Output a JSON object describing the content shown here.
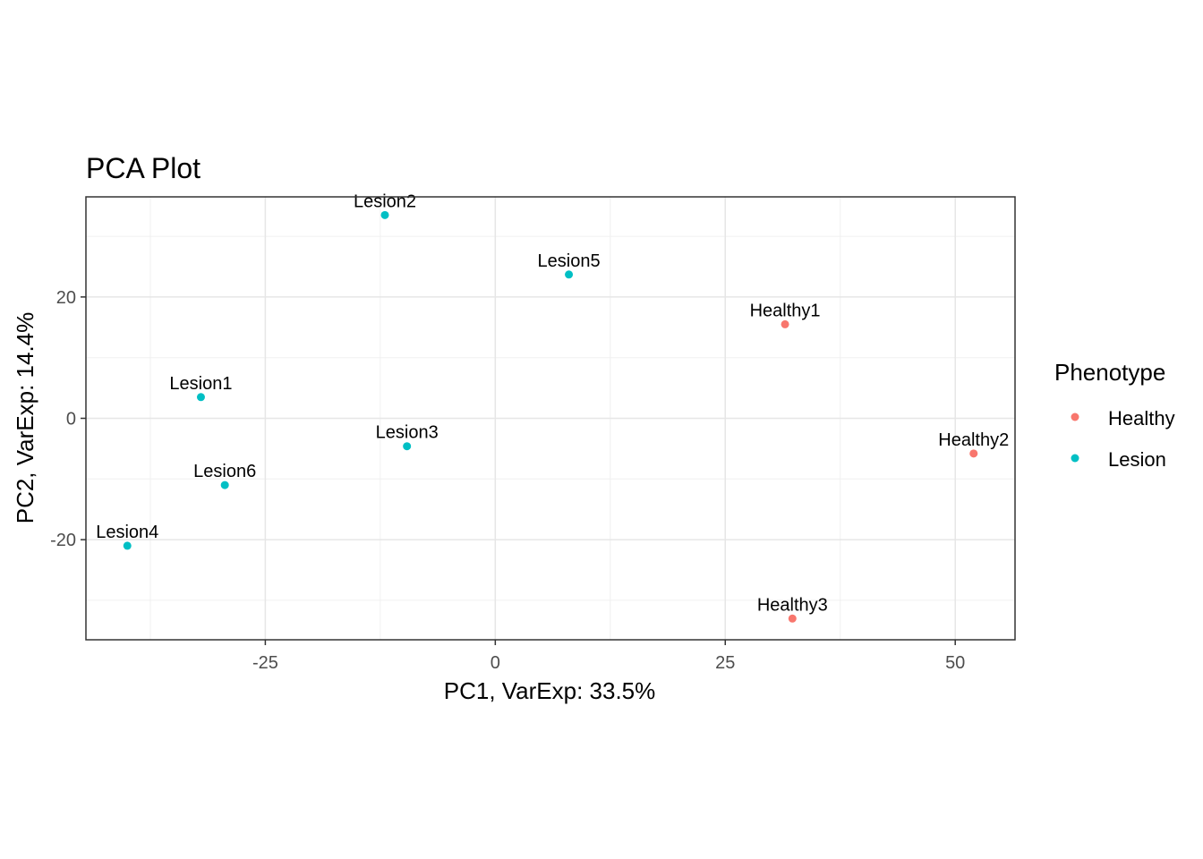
{
  "chart_data": {
    "type": "scatter",
    "title": "PCA Plot",
    "xlabel": "PC1, VarExp: 33.5%",
    "ylabel": "PC2, VarExp: 14.4%",
    "xlim": [
      -44.5,
      56.5
    ],
    "ylim": [
      -36.5,
      36.5
    ],
    "x_ticks": [
      -25,
      0,
      25,
      50
    ],
    "x_tick_labels": [
      "-25",
      "0",
      "25",
      "50"
    ],
    "y_ticks": [
      -20,
      0,
      20
    ],
    "y_tick_labels": [
      "-20",
      "0",
      "20"
    ],
    "grid": true,
    "legend": {
      "title": "Phenotype",
      "placement": "right",
      "entries": [
        {
          "label": "Healthy",
          "color": "#F8766D"
        },
        {
          "label": "Lesion",
          "color": "#00BFC4"
        }
      ]
    },
    "series": [
      {
        "name": "Healthy",
        "color": "#F8766D",
        "points": [
          {
            "label": "Healthy1",
            "x": 31.5,
            "y": 15.5
          },
          {
            "label": "Healthy2",
            "x": 52.0,
            "y": -5.8
          },
          {
            "label": "Healthy3",
            "x": 32.3,
            "y": -33.0
          }
        ]
      },
      {
        "name": "Lesion",
        "color": "#00BFC4",
        "points": [
          {
            "label": "Lesion1",
            "x": -32.0,
            "y": 3.5
          },
          {
            "label": "Lesion2",
            "x": -12.0,
            "y": 33.5
          },
          {
            "label": "Lesion3",
            "x": -9.6,
            "y": -4.6
          },
          {
            "label": "Lesion4",
            "x": -40.0,
            "y": -21.0
          },
          {
            "label": "Lesion5",
            "x": 8.0,
            "y": 23.7
          },
          {
            "label": "Lesion6",
            "x": -29.4,
            "y": -11.0
          }
        ]
      }
    ]
  }
}
